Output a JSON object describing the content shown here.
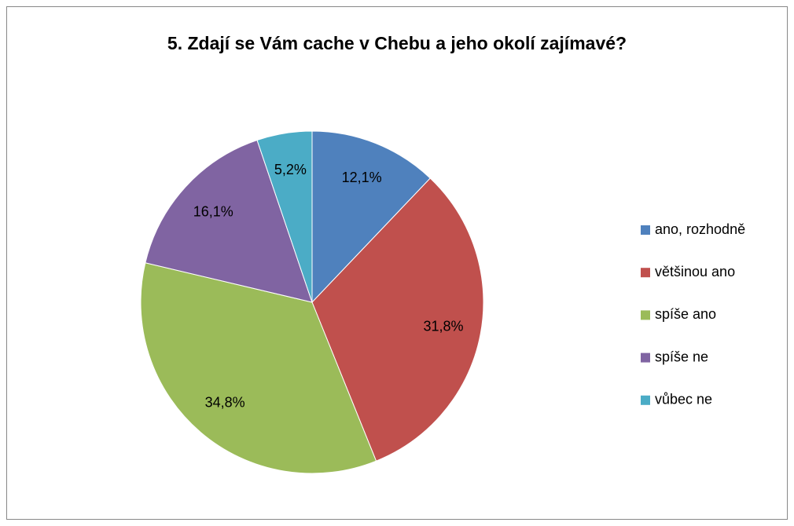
{
  "chart_data": {
    "type": "pie",
    "title": "5. Zdají se Vám cache v Chebu a jeho okolí zajímavé?",
    "categories": [
      "ano, rozhodně",
      "většinou ano",
      "spíše ano",
      "spíše ne",
      "vůbec ne"
    ],
    "values": [
      12.1,
      31.8,
      34.8,
      16.1,
      5.2
    ],
    "value_labels": [
      "12,1%",
      "31,8%",
      "34,8%",
      "16,1%",
      "5,2%"
    ],
    "colors": [
      "#4f81bd",
      "#c0504d",
      "#9bbb59",
      "#8064a2",
      "#4bacc6"
    ],
    "legend": "right"
  }
}
